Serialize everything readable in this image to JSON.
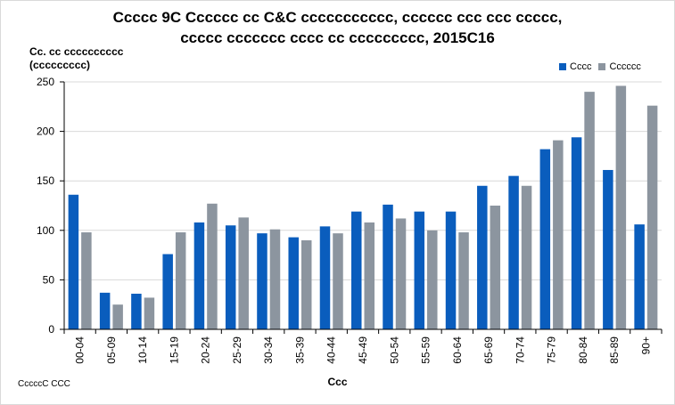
{
  "chart_data": {
    "type": "bar",
    "title_line1": "Ccccc 9C Cccccc cc C&C ccccccccccc, cccccc ccc ccc ccccc,",
    "title_line2": "ccccc ccccccc cccc cc ccccccccc, 2015C16",
    "ylabel_line1": "Cc. cc cccccccccc",
    "ylabel_line2": "(ccccccccc)",
    "xlabel": "Ccc",
    "source": "CccccC CCC",
    "legend_position": "top-right",
    "ylim": [
      0,
      250
    ],
    "yticks": [
      0,
      50,
      100,
      150,
      200,
      250
    ],
    "grid": true,
    "categories": [
      "00-04",
      "05-09",
      "10-14",
      "15-19",
      "20-24",
      "25-29",
      "30-34",
      "35-39",
      "40-44",
      "45-49",
      "50-54",
      "55-59",
      "60-64",
      "65-69",
      "70-74",
      "75-79",
      "80-84",
      "85-89",
      "90+"
    ],
    "series": [
      {
        "name": "Cccc",
        "color": "#0a5dbd",
        "values": [
          136,
          37,
          36,
          76,
          108,
          105,
          97,
          93,
          104,
          119,
          126,
          119,
          119,
          145,
          155,
          182,
          194,
          161,
          106
        ]
      },
      {
        "name": "Cccccc",
        "color": "#8c959f",
        "values": [
          98,
          25,
          32,
          98,
          127,
          113,
          101,
          90,
          97,
          108,
          112,
          100,
          98,
          125,
          145,
          191,
          240,
          246,
          226
        ]
      }
    ]
  }
}
